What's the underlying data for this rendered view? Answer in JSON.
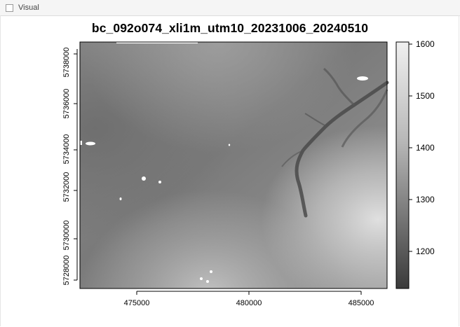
{
  "tab": {
    "label": "Visual"
  },
  "plot": {
    "title": "bc_092o074_xli1m_utm10_20231006_20240510",
    "x_ticks": [
      "475000",
      "480000",
      "485000"
    ],
    "y_ticks": [
      "5728000",
      "5730000",
      "5732000",
      "5734000",
      "5736000",
      "5738000"
    ],
    "legend_ticks": [
      "1600",
      "1500",
      "1400",
      "1300",
      "1200"
    ],
    "legend_colors": {
      "high": "#e6e6e6",
      "low": "#3a3a3a"
    }
  }
}
